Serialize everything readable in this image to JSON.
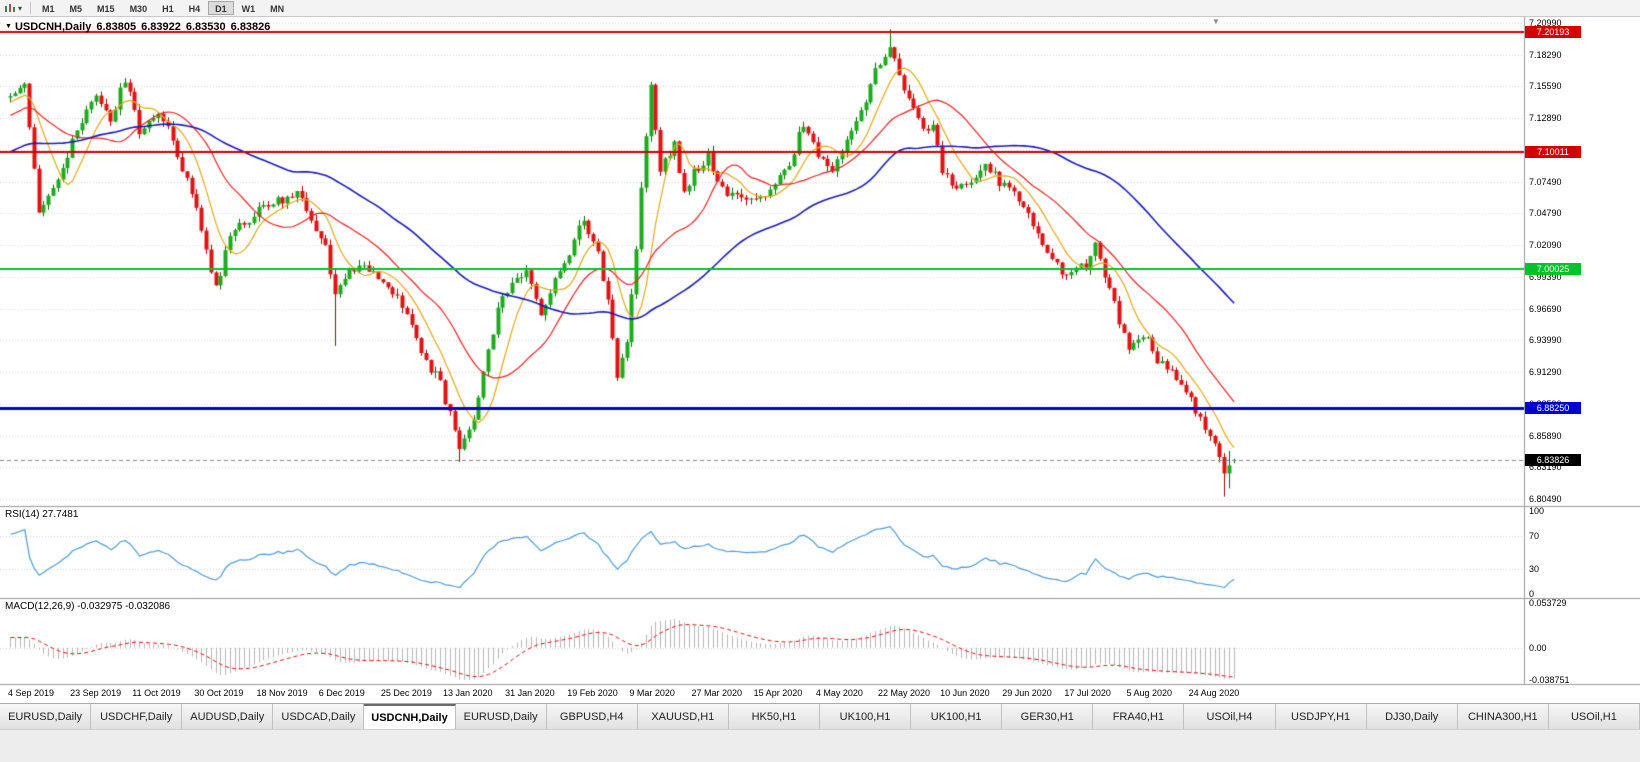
{
  "toolbar": {
    "timeframes": [
      "M1",
      "M5",
      "M15",
      "M30",
      "H1",
      "H4",
      "D1",
      "W1",
      "MN"
    ],
    "active_timeframe": "D1"
  },
  "chart": {
    "title": {
      "symbol_period": "USDCNH,Daily",
      "open": "6.83805",
      "high": "6.83922",
      "low": "6.83530",
      "close": "6.83826"
    },
    "rsi_label": "RSI(14) 27.7481",
    "macd_label": "MACD(12,26,9) -0.032975 -0.032086"
  },
  "chart_data": {
    "type": "candlestick",
    "symbol": "USDCNH",
    "period": "Daily",
    "current_bar": {
      "open": 6.83805,
      "high": 6.83922,
      "low": 6.8353,
      "close": 6.83826
    },
    "price_axis_labels": [
      "7.20990",
      "7.18290",
      "7.15590",
      "7.12890",
      "7.10190",
      "7.07490",
      "7.04790",
      "7.02090",
      "6.99390",
      "6.96690",
      "6.93990",
      "6.91290",
      "6.88590",
      "6.85890",
      "6.83190",
      "6.80490"
    ],
    "price_range": {
      "top": 7.2133,
      "bottom": 6.799
    },
    "date_labels": [
      "4 Sep 2019",
      "23 Sep 2019",
      "11 Oct 2019",
      "30 Oct 2019",
      "18 Nov 2019",
      "6 Dec 2019",
      "25 Dec 2019",
      "13 Jan 2020",
      "31 Jan 2020",
      "19 Feb 2020",
      "9 Mar 2020",
      "27 Mar 2020",
      "15 Apr 2020",
      "4 May 2020",
      "22 May 2020",
      "10 Jun 2020",
      "29 Jun 2020",
      "17 Jul 2020",
      "5 Aug 2020",
      "24 Aug 2020"
    ],
    "horizontal_lines": [
      {
        "price": 7.20193,
        "label": "7.20193",
        "color": "#d40000",
        "width": 2
      },
      {
        "price": 7.10011,
        "label": "7.10011",
        "color": "#d40000",
        "width": 2
      },
      {
        "price": 7.00025,
        "label": "7.00025",
        "color": "#00c22d",
        "width": 2
      },
      {
        "price": 6.8825,
        "label": "6.88250",
        "color": "#0000d0",
        "width": 3
      }
    ],
    "current_price_marker": {
      "value": 6.83826,
      "label": "6.83826",
      "color": "#000000"
    },
    "bars_total": 257,
    "close_anchors": [
      [
        0,
        7.148
      ],
      [
        3,
        7.162
      ],
      [
        6,
        7.045
      ],
      [
        10,
        7.075
      ],
      [
        14,
        7.118
      ],
      [
        18,
        7.146
      ],
      [
        21,
        7.128
      ],
      [
        24,
        7.162
      ],
      [
        27,
        7.118
      ],
      [
        31,
        7.136
      ],
      [
        35,
        7.1
      ],
      [
        39,
        7.052
      ],
      [
        43,
        6.984
      ],
      [
        46,
        7.028
      ],
      [
        50,
        7.044
      ],
      [
        54,
        7.056
      ],
      [
        58,
        7.06
      ],
      [
        60,
        7.068
      ],
      [
        63,
        7.044
      ],
      [
        66,
        7.02
      ],
      [
        68,
        6.98
      ],
      [
        72,
        7.002
      ],
      [
        76,
        6.998
      ],
      [
        80,
        6.982
      ],
      [
        84,
        6.952
      ],
      [
        87,
        6.924
      ],
      [
        90,
        6.902
      ],
      [
        92,
        6.878
      ],
      [
        94,
        6.85
      ],
      [
        97,
        6.874
      ],
      [
        100,
        6.93
      ],
      [
        102,
        6.968
      ],
      [
        104,
        6.982
      ],
      [
        108,
        6.996
      ],
      [
        111,
        6.964
      ],
      [
        114,
        6.99
      ],
      [
        117,
        7.016
      ],
      [
        120,
        7.042
      ],
      [
        123,
        7.012
      ],
      [
        125,
        6.974
      ],
      [
        127,
        6.912
      ],
      [
        129,
        6.934
      ],
      [
        131,
        7.02
      ],
      [
        133,
        7.114
      ],
      [
        134,
        7.158
      ],
      [
        136,
        7.086
      ],
      [
        139,
        7.108
      ],
      [
        141,
        7.064
      ],
      [
        143,
        7.082
      ],
      [
        146,
        7.098
      ],
      [
        149,
        7.068
      ],
      [
        152,
        7.06
      ],
      [
        156,
        7.058
      ],
      [
        160,
        7.07
      ],
      [
        163,
        7.09
      ],
      [
        166,
        7.126
      ],
      [
        169,
        7.096
      ],
      [
        172,
        7.086
      ],
      [
        175,
        7.112
      ],
      [
        178,
        7.136
      ],
      [
        181,
        7.168
      ],
      [
        184,
        7.19
      ],
      [
        186,
        7.164
      ],
      [
        189,
        7.134
      ],
      [
        191,
        7.118
      ],
      [
        193,
        7.126
      ],
      [
        195,
        7.082
      ],
      [
        198,
        7.066
      ],
      [
        201,
        7.076
      ],
      [
        204,
        7.086
      ],
      [
        208,
        7.072
      ],
      [
        212,
        7.056
      ],
      [
        216,
        7.02
      ],
      [
        219,
        7.002
      ],
      [
        222,
        6.996
      ],
      [
        225,
        7.004
      ],
      [
        227,
        7.022
      ],
      [
        230,
        6.984
      ],
      [
        234,
        6.93
      ],
      [
        237,
        6.946
      ],
      [
        240,
        6.924
      ],
      [
        243,
        6.916
      ],
      [
        246,
        6.894
      ],
      [
        249,
        6.876
      ],
      [
        251,
        6.86
      ],
      [
        253,
        6.838
      ],
      [
        255,
        6.812
      ],
      [
        256,
        6.838
      ]
    ],
    "moving_averages": [
      {
        "period": 8,
        "color": "#e6a817"
      },
      {
        "period": 20,
        "color": "#f02020"
      },
      {
        "period": 55,
        "color": "#1a1ab8"
      }
    ],
    "indicators": {
      "rsi": {
        "name": "RSI",
        "period": 14,
        "current": 27.7481,
        "color": "#4f9bd8",
        "scale_labels": [
          "100",
          "70",
          "30",
          "0"
        ],
        "levels": [
          70,
          30
        ]
      },
      "macd": {
        "name": "MACD",
        "fast": 12,
        "slow": 26,
        "signal": 9,
        "macd_current": -0.032975,
        "signal_current": -0.032086,
        "scale_labels": [
          {
            "value": 0.053729,
            "label": "0.053729"
          },
          {
            "value": 0,
            "label": "0.00"
          },
          {
            "value": -0.038751,
            "label": "-0.038751"
          }
        ],
        "histogram_color": "#b6b6b6",
        "signal_color": "#e01010"
      }
    },
    "candle_colors": {
      "up_fill": "#1cab1c",
      "up_stroke": "#0b6b0b",
      "down_fill": "#e31212",
      "down_stroke": "#9a0b0b"
    },
    "grid": "dotted-horizontal",
    "legend_position": "none"
  },
  "tabs": {
    "items": [
      "EURUSD,Daily",
      "USDCHF,Daily",
      "AUDUSD,Daily",
      "USDCAD,Daily",
      "USDCNH,Daily",
      "EURUSD,Daily",
      "GBPUSD,H4",
      "XAUUSD,H1",
      "HK50,H1",
      "UK100,H1",
      "UK100,H1",
      "GER30,H1",
      "FRA40,H1",
      "USOil,H4",
      "USDJPY,H1",
      "DJ30,Daily",
      "CHINA300,H1",
      "USOil,H1"
    ],
    "active_index": 4
  }
}
